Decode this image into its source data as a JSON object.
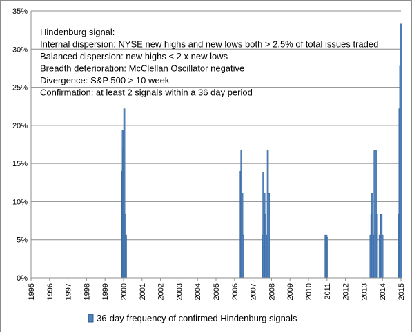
{
  "chart_data": {
    "type": "bar",
    "title": "",
    "xlabel": "",
    "ylabel": "",
    "ylim": [
      0,
      35
    ],
    "xlim": [
      1995,
      2015
    ],
    "y_ticks": [
      0,
      5,
      10,
      15,
      20,
      25,
      30,
      35
    ],
    "y_tick_labels": [
      "0%",
      "5%",
      "10%",
      "15%",
      "20%",
      "25%",
      "30%",
      "35%"
    ],
    "x_ticks": [
      1995,
      1996,
      1997,
      1998,
      1999,
      2000,
      2001,
      2002,
      2003,
      2004,
      2005,
      2006,
      2007,
      2008,
      2009,
      2010,
      2011,
      2012,
      2013,
      2014,
      2015
    ],
    "x_tick_labels": [
      "1995",
      "1996",
      "1997",
      "1998",
      "1999",
      "2000",
      "2001",
      "2002",
      "2003",
      "2004",
      "2005",
      "2006",
      "2007",
      "2008",
      "2009",
      "2010",
      "2011",
      "2012",
      "2013",
      "2014",
      "2015"
    ],
    "grid": "horizontal",
    "legend_position": "bottom",
    "series": [
      {
        "name": "36-day frequency of confirmed Hindenburg signals",
        "color": "#4f81bd",
        "points": [
          [
            1999.93,
            14.0
          ],
          [
            1999.96,
            19.4
          ],
          [
            2000.0,
            17.0
          ],
          [
            2000.04,
            22.2
          ],
          [
            2000.08,
            8.3
          ],
          [
            2000.13,
            5.6
          ],
          [
            2006.33,
            14.0
          ],
          [
            2006.37,
            16.7
          ],
          [
            2006.42,
            11.1
          ],
          [
            2006.45,
            5.6
          ],
          [
            2007.52,
            5.6
          ],
          [
            2007.56,
            13.9
          ],
          [
            2007.62,
            11.1
          ],
          [
            2007.67,
            8.3
          ],
          [
            2007.75,
            5.6
          ],
          [
            2007.8,
            16.7
          ],
          [
            2007.86,
            11.1
          ],
          [
            2010.92,
            5.6
          ],
          [
            2010.97,
            5.6
          ],
          [
            2011.02,
            5.3
          ],
          [
            2013.35,
            5.6
          ],
          [
            2013.4,
            8.3
          ],
          [
            2013.45,
            11.1
          ],
          [
            2013.52,
            5.6
          ],
          [
            2013.57,
            16.7
          ],
          [
            2013.64,
            16.7
          ],
          [
            2013.7,
            8.3
          ],
          [
            2013.85,
            5.6
          ],
          [
            2013.9,
            8.3
          ],
          [
            2013.95,
            8.3
          ],
          [
            2014.0,
            5.6
          ],
          [
            2014.88,
            8.3
          ],
          [
            2014.92,
            22.2
          ],
          [
            2014.96,
            27.8
          ],
          [
            2015.0,
            33.3
          ]
        ]
      }
    ],
    "annotations": [
      "Hindenburg signal:",
      "Internal dispersion: NYSE new highs and new lows both > 2.5% of total issues traded",
      "Balanced dispersion: new highs < 2 x new lows",
      "Breadth deterioration: McClellan Oscillator negative",
      "Divergence: S&P 500 > 10 week",
      "Confirmation: at least 2 signals within a 36 day period"
    ]
  }
}
